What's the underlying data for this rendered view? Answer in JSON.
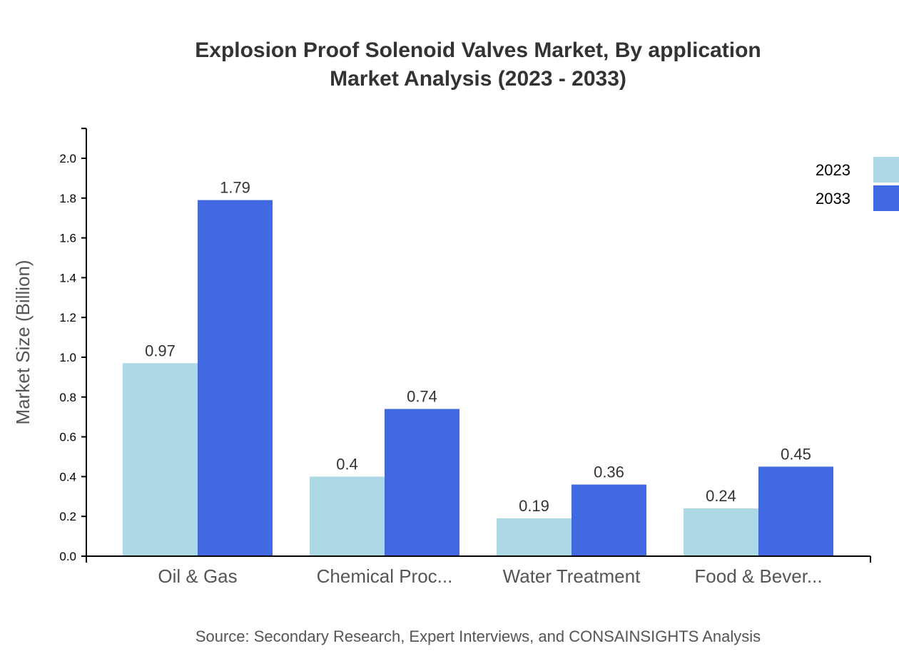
{
  "chart_data": {
    "type": "bar",
    "title": [
      "Explosion Proof Solenoid Valves Market, By application",
      "Market Analysis (2023 - 2033)"
    ],
    "xlabel": "",
    "ylabel": "Market Size (Billion)",
    "ylim": [
      0,
      2.15
    ],
    "yticks": [
      "0.0",
      "0.2",
      "0.4",
      "0.6",
      "0.8",
      "1.0",
      "1.2",
      "1.4",
      "1.6",
      "1.8",
      "2.0"
    ],
    "categories": [
      "Oil & Gas",
      "Chemical Proc...",
      "Water Treatment",
      "Food & Bever..."
    ],
    "series": [
      {
        "name": "2023",
        "color": "#ADD8E6",
        "values": [
          0.97,
          0.4,
          0.19,
          0.24
        ],
        "labels": [
          "0.97",
          "0.4",
          "0.19",
          "0.24"
        ]
      },
      {
        "name": "2033",
        "color": "#4169E1",
        "values": [
          1.79,
          0.74,
          0.36,
          0.45
        ],
        "labels": [
          "1.79",
          "0.74",
          "0.36",
          "0.45"
        ]
      }
    ],
    "legend_position": "top-right",
    "grid": false,
    "source": "Source: Secondary Research, Expert Interviews, and CONSAINSIGHTS Analysis"
  }
}
